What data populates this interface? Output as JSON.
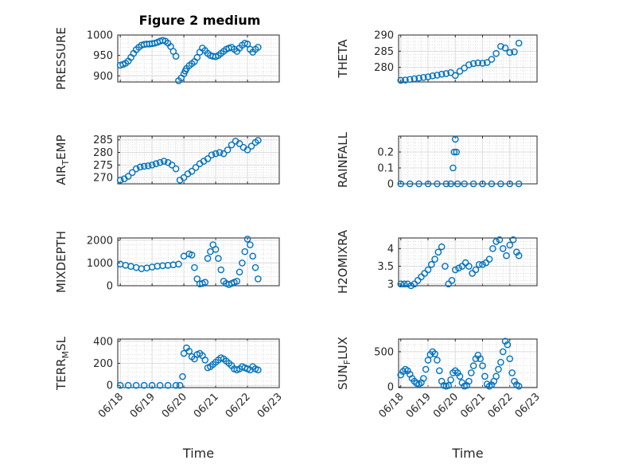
{
  "figure": {
    "title": "Figure 2 medium",
    "marker_color": "#0072BD"
  },
  "chart_data": [
    {
      "type": "scatter",
      "ylabel": "PRESSURE",
      "xlabel": "",
      "title": "Figure 2 medium",
      "xlim": [
        "06/18",
        "06/23"
      ],
      "ylim": [
        885,
        1000
      ],
      "yticks": [
        900,
        950,
        1000
      ],
      "grid": true,
      "x": [
        "06/18 00:00",
        "06/18 02:00",
        "06/18 04:00",
        "06/18 06:00",
        "06/18 08:00",
        "06/18 10:00",
        "06/18 12:00",
        "06/18 14:00",
        "06/18 16:00",
        "06/18 18:00",
        "06/18 20:00",
        "06/18 22:00",
        "06/19 00:00",
        "06/19 02:00",
        "06/19 04:00",
        "06/19 06:00",
        "06/19 08:00",
        "06/19 10:00",
        "06/19 12:00",
        "06/19 14:00",
        "06/19 16:00",
        "06/19 18:00",
        "06/19 20:00",
        "06/19 22:00",
        "06/20 00:00",
        "06/20 01:00",
        "06/20 02:00",
        "06/20 04:00",
        "06/20 06:00",
        "06/20 08:00",
        "06/20 10:00",
        "06/20 12:00",
        "06/20 14:00",
        "06/20 16:00",
        "06/20 18:00",
        "06/20 20:00",
        "06/20 22:00",
        "06/21 00:00",
        "06/21 02:00",
        "06/21 04:00",
        "06/21 06:00",
        "06/21 08:00",
        "06/21 10:00",
        "06/21 12:00",
        "06/21 14:00",
        "06/21 16:00",
        "06/21 18:00",
        "06/21 20:00",
        "06/21 22:00",
        "06/22 00:00",
        "06/22 02:00",
        "06/22 04:00",
        "06/22 06:00",
        "06/22 08:00"
      ],
      "y": [
        926,
        928,
        931,
        936,
        945,
        955,
        964,
        970,
        975,
        977,
        978,
        978,
        979,
        980,
        982,
        985,
        987,
        985,
        980,
        972,
        960,
        948,
        888,
        895,
        905,
        912,
        918,
        925,
        930,
        935,
        945,
        958,
        968,
        962,
        955,
        950,
        948,
        947,
        950,
        955,
        960,
        965,
        968,
        970,
        965,
        960,
        968,
        975,
        980,
        978,
        965,
        958,
        965,
        970
      ]
    },
    {
      "type": "scatter",
      "ylabel": "THETA",
      "xlabel": "",
      "xlim": [
        "06/18",
        "06/23"
      ],
      "ylim": [
        275.5,
        290
      ],
      "yticks": [
        280,
        285,
        290
      ],
      "grid": true,
      "x": [
        "06/18 00:00",
        "06/18 04:00",
        "06/18 08:00",
        "06/18 12:00",
        "06/18 16:00",
        "06/18 20:00",
        "06/19 00:00",
        "06/19 04:00",
        "06/19 08:00",
        "06/19 12:00",
        "06/19 16:00",
        "06/19 20:00",
        "06/20 00:00",
        "06/20 04:00",
        "06/20 08:00",
        "06/20 12:00",
        "06/20 16:00",
        "06/20 20:00",
        "06/21 00:00",
        "06/21 04:00",
        "06/21 08:00",
        "06/21 12:00",
        "06/21 16:00",
        "06/21 20:00",
        "06/22 00:00",
        "06/22 04:00",
        "06/22 08:00"
      ],
      "y": [
        276,
        276.1,
        276.3,
        276.5,
        276.7,
        276.9,
        277.1,
        277.4,
        277.6,
        277.9,
        278.1,
        278.4,
        277.5,
        278.8,
        279.8,
        280.8,
        281.2,
        281.4,
        281.3,
        281.5,
        282.5,
        284.3,
        286.5,
        286,
        284.6,
        284.8,
        287.5
      ]
    },
    {
      "type": "scatter",
      "ylabel": "AIR_TEMP",
      "xlabel": "",
      "xlim": [
        "06/18",
        "06/23"
      ],
      "ylim": [
        267.5,
        286.5
      ],
      "yticks": [
        270,
        275,
        280,
        285
      ],
      "grid": true,
      "x": [
        "06/18 00:00",
        "06/18 03:00",
        "06/18 06:00",
        "06/18 09:00",
        "06/18 12:00",
        "06/18 15:00",
        "06/18 18:00",
        "06/18 21:00",
        "06/19 00:00",
        "06/19 03:00",
        "06/19 06:00",
        "06/19 09:00",
        "06/19 12:00",
        "06/19 15:00",
        "06/19 18:00",
        "06/19 21:00",
        "06/20 00:00",
        "06/20 03:00",
        "06/20 06:00",
        "06/20 09:00",
        "06/20 12:00",
        "06/20 15:00",
        "06/20 18:00",
        "06/20 21:00",
        "06/21 00:00",
        "06/21 03:00",
        "06/21 06:00",
        "06/21 09:00",
        "06/21 12:00",
        "06/21 15:00",
        "06/21 18:00",
        "06/21 21:00",
        "06/22 00:00",
        "06/22 03:00",
        "06/22 06:00",
        "06/22 08:00"
      ],
      "y": [
        269,
        269.5,
        270.5,
        272,
        273.5,
        274.2,
        274.5,
        274.7,
        275,
        275.5,
        276,
        276.5,
        276,
        275,
        273.5,
        269,
        270,
        271.5,
        272.5,
        274,
        275.5,
        276.5,
        277.5,
        279,
        279.5,
        280,
        279.5,
        281,
        283,
        284.5,
        283.5,
        282,
        281,
        282.5,
        284,
        284.8
      ]
    },
    {
      "type": "scatter",
      "ylabel": "RAINFALL",
      "xlabel": "",
      "xlim": [
        "06/18",
        "06/23"
      ],
      "ylim": [
        0,
        0.3
      ],
      "yticks": [
        0,
        0.1,
        0.2
      ],
      "grid": true,
      "x": [
        "06/18 00:00",
        "06/18 08:00",
        "06/18 16:00",
        "06/19 00:00",
        "06/19 08:00",
        "06/19 16:00",
        "06/19 20:00",
        "06/19 22:00",
        "06/19 23:00",
        "06/20 00:00",
        "06/20 01:00",
        "06/20 02:00",
        "06/20 08:00",
        "06/20 16:00",
        "06/21 00:00",
        "06/21 08:00",
        "06/21 16:00",
        "06/22 00:00",
        "06/22 08:00"
      ],
      "y": [
        0,
        0,
        0,
        0,
        0,
        0,
        0,
        0.1,
        0.2,
        0.28,
        0.2,
        0,
        0,
        0,
        0,
        0,
        0,
        0,
        0
      ]
    },
    {
      "type": "scatter",
      "ylabel": "MIXDEPTH",
      "xlabel": "",
      "xlim": [
        "06/18",
        "06/23"
      ],
      "ylim": [
        0,
        2100
      ],
      "yticks": [
        0,
        1000,
        2000
      ],
      "grid": true,
      "x": [
        "06/18 00:00",
        "06/18 04:00",
        "06/18 08:00",
        "06/18 12:00",
        "06/18 16:00",
        "06/18 20:00",
        "06/19 00:00",
        "06/19 04:00",
        "06/19 08:00",
        "06/19 12:00",
        "06/19 16:00",
        "06/19 20:00",
        "06/20 00:00",
        "06/20 04:00",
        "06/20 06:00",
        "06/20 08:00",
        "06/20 10:00",
        "06/20 12:00",
        "06/20 14:00",
        "06/20 16:00",
        "06/20 18:00",
        "06/20 20:00",
        "06/20 22:00",
        "06/21 00:00",
        "06/21 02:00",
        "06/21 04:00",
        "06/21 06:00",
        "06/21 08:00",
        "06/21 10:00",
        "06/21 12:00",
        "06/21 14:00",
        "06/21 16:00",
        "06/21 18:00",
        "06/21 20:00",
        "06/21 22:00",
        "06/22 00:00",
        "06/22 02:00",
        "06/22 04:00",
        "06/22 06:00",
        "06/22 08:00"
      ],
      "y": [
        950,
        900,
        850,
        800,
        750,
        780,
        820,
        860,
        880,
        900,
        920,
        950,
        1300,
        1400,
        1350,
        800,
        300,
        80,
        100,
        150,
        1200,
        1500,
        1800,
        1600,
        1200,
        700,
        200,
        100,
        50,
        100,
        150,
        200,
        600,
        1000,
        1500,
        2050,
        1800,
        1300,
        800,
        300
      ]
    },
    {
      "type": "scatter",
      "ylabel": "H2OMIXRA",
      "xlabel": "",
      "xlim": [
        "06/18",
        "06/23"
      ],
      "ylim": [
        2.95,
        4.3
      ],
      "yticks": [
        3,
        3.5,
        4
      ],
      "grid": true,
      "x": [
        "06/18 00:00",
        "06/18 03:00",
        "06/18 06:00",
        "06/18 09:00",
        "06/18 12:00",
        "06/18 15:00",
        "06/18 18:00",
        "06/18 21:00",
        "06/19 00:00",
        "06/19 03:00",
        "06/19 06:00",
        "06/19 09:00",
        "06/19 12:00",
        "06/19 15:00",
        "06/19 18:00",
        "06/19 21:00",
        "06/20 00:00",
        "06/20 03:00",
        "06/20 06:00",
        "06/20 09:00",
        "06/20 12:00",
        "06/20 15:00",
        "06/20 18:00",
        "06/20 21:00",
        "06/21 00:00",
        "06/21 03:00",
        "06/21 06:00",
        "06/21 09:00",
        "06/21 12:00",
        "06/21 15:00",
        "06/21 18:00",
        "06/21 21:00",
        "06/22 00:00",
        "06/22 03:00",
        "06/22 06:00",
        "06/22 08:00"
      ],
      "y": [
        3,
        3,
        3,
        2.95,
        3,
        3.1,
        3.2,
        3.3,
        3.4,
        3.55,
        3.7,
        3.9,
        4.05,
        3.5,
        3.0,
        3.1,
        3.4,
        3.45,
        3.5,
        3.6,
        3.5,
        3.3,
        3.4,
        3.55,
        3.55,
        3.6,
        3.7,
        4.0,
        4.2,
        4.25,
        4.0,
        3.8,
        4.1,
        4.25,
        3.9,
        3.8
      ]
    },
    {
      "type": "scatter",
      "ylabel": "TERR_MSL",
      "xlabel": "Time",
      "xlim": [
        "06/18",
        "06/23"
      ],
      "ylim": [
        -20,
        420
      ],
      "yticks": [
        0,
        200,
        400
      ],
      "grid": true,
      "x": [
        "06/18 00:00",
        "06/18 06:00",
        "06/18 12:00",
        "06/18 18:00",
        "06/19 00:00",
        "06/19 06:00",
        "06/19 12:00",
        "06/19 18:00",
        "06/19 21:00",
        "06/19 23:00",
        "06/20 00:00",
        "06/20 02:00",
        "06/20 04:00",
        "06/20 06:00",
        "06/20 08:00",
        "06/20 10:00",
        "06/20 12:00",
        "06/20 14:00",
        "06/20 16:00",
        "06/20 18:00",
        "06/20 20:00",
        "06/20 22:00",
        "06/21 00:00",
        "06/21 02:00",
        "06/21 04:00",
        "06/21 06:00",
        "06/21 08:00",
        "06/21 10:00",
        "06/21 12:00",
        "06/21 14:00",
        "06/21 16:00",
        "06/21 18:00",
        "06/21 20:00",
        "06/21 22:00",
        "06/22 00:00",
        "06/22 02:00",
        "06/22 04:00",
        "06/22 06:00",
        "06/22 08:00"
      ],
      "y": [
        0,
        0,
        0,
        0,
        0,
        0,
        0,
        0,
        0,
        80,
        290,
        340,
        310,
        260,
        240,
        280,
        290,
        270,
        230,
        160,
        170,
        190,
        210,
        230,
        250,
        240,
        220,
        200,
        180,
        150,
        140,
        150,
        170,
        160,
        150,
        140,
        170,
        150,
        140
      ]
    },
    {
      "type": "scatter",
      "ylabel": "SUN_FLUX",
      "xlabel": "Time",
      "xlim": [
        "06/18",
        "06/23"
      ],
      "ylim": [
        -10,
        680
      ],
      "yticks": [
        0,
        500
      ],
      "grid": true,
      "x": [
        "06/18 00:00",
        "06/18 02:00",
        "06/18 04:00",
        "06/18 06:00",
        "06/18 08:00",
        "06/18 10:00",
        "06/18 12:00",
        "06/18 14:00",
        "06/18 16:00",
        "06/18 18:00",
        "06/18 20:00",
        "06/18 22:00",
        "06/19 00:00",
        "06/19 02:00",
        "06/19 04:00",
        "06/19 06:00",
        "06/19 08:00",
        "06/19 10:00",
        "06/19 12:00",
        "06/19 14:00",
        "06/19 16:00",
        "06/19 18:00",
        "06/19 20:00",
        "06/19 22:00",
        "06/20 00:00",
        "06/20 02:00",
        "06/20 04:00",
        "06/20 06:00",
        "06/20 08:00",
        "06/20 10:00",
        "06/20 12:00",
        "06/20 14:00",
        "06/20 16:00",
        "06/20 18:00",
        "06/20 20:00",
        "06/20 22:00",
        "06/21 00:00",
        "06/21 02:00",
        "06/21 04:00",
        "06/21 06:00",
        "06/21 08:00",
        "06/21 10:00",
        "06/21 12:00",
        "06/21 14:00",
        "06/21 16:00",
        "06/21 18:00",
        "06/21 20:00",
        "06/21 22:00",
        "06/22 00:00",
        "06/22 02:00",
        "06/22 04:00",
        "06/22 06:00",
        "06/22 08:00"
      ],
      "y": [
        170,
        220,
        250,
        230,
        180,
        120,
        80,
        50,
        40,
        60,
        120,
        250,
        380,
        460,
        500,
        470,
        380,
        230,
        80,
        20,
        10,
        20,
        100,
        200,
        230,
        200,
        150,
        60,
        10,
        20,
        80,
        200,
        300,
        400,
        450,
        400,
        300,
        150,
        40,
        10,
        30,
        80,
        150,
        250,
        350,
        500,
        650,
        600,
        400,
        200,
        80,
        30,
        10
      ]
    }
  ]
}
